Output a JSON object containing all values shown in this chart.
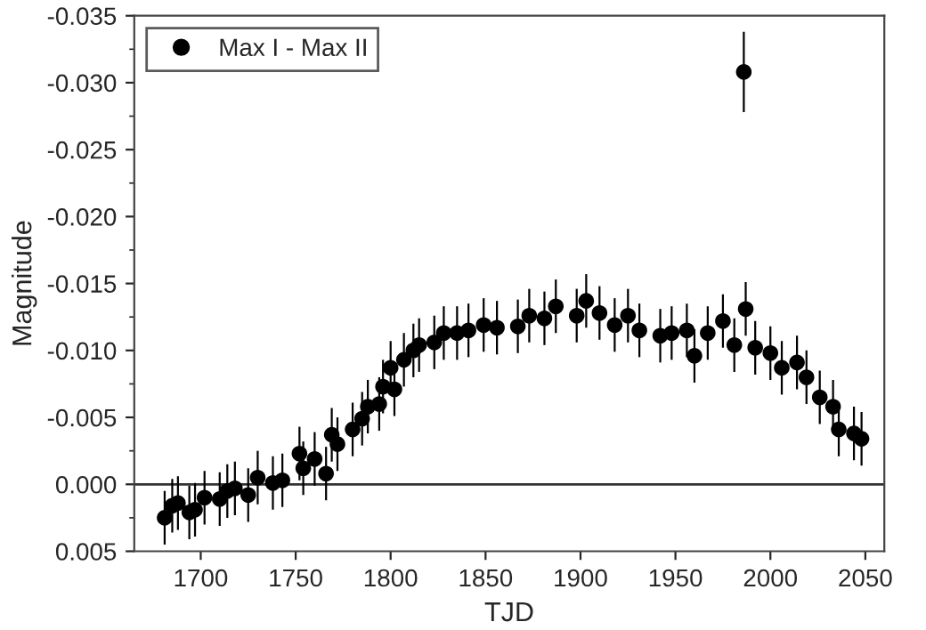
{
  "chart_data": {
    "type": "scatter",
    "xlabel": "TJD",
    "ylabel": "Magnitude",
    "x": [
      1681,
      1685,
      1688,
      1694,
      1697,
      1702,
      1710,
      1714,
      1718,
      1725,
      1730,
      1738,
      1743,
      1752,
      1754,
      1760,
      1766,
      1769,
      1772,
      1780,
      1785,
      1788,
      1794,
      1796,
      1800,
      1802,
      1807,
      1812,
      1815,
      1823,
      1828,
      1835,
      1841,
      1849,
      1856,
      1867,
      1873,
      1881,
      1887,
      1898,
      1903,
      1910,
      1918,
      1925,
      1931,
      1942,
      1948,
      1956,
      1960,
      1967,
      1975,
      1981,
      1986,
      1987,
      1992,
      2000,
      2006,
      2014,
      2019,
      2026,
      2033,
      2036,
      2044,
      2048
    ],
    "series": [
      {
        "name": "Max I - Max II",
        "color": "#000000",
        "values": [
          0.0025,
          0.0016,
          0.0014,
          0.0021,
          0.0019,
          0.001,
          0.0011,
          0.0005,
          0.0003,
          0.0008,
          -0.0005,
          -0.0001,
          -0.0003,
          -0.0023,
          -0.0012,
          -0.0019,
          -0.0008,
          -0.0037,
          -0.003,
          -0.0041,
          -0.0049,
          -0.0058,
          -0.006,
          -0.0073,
          -0.0087,
          -0.0071,
          -0.0093,
          -0.01,
          -0.0104,
          -0.0106,
          -0.0113,
          -0.0113,
          -0.0115,
          -0.0119,
          -0.0117,
          -0.0118,
          -0.0126,
          -0.0124,
          -0.0133,
          -0.0126,
          -0.0137,
          -0.0128,
          -0.0119,
          -0.0126,
          -0.0115,
          -0.0111,
          -0.0113,
          -0.0115,
          -0.0096,
          -0.0113,
          -0.0122,
          -0.0104,
          -0.0308,
          -0.0131,
          -0.0102,
          -0.0098,
          -0.0087,
          -0.0091,
          -0.008,
          -0.0065,
          -0.0058,
          -0.0041,
          -0.0038,
          -0.0034
        ],
        "errors": [
          0.002,
          0.002,
          0.002,
          0.002,
          0.002,
          0.002,
          0.002,
          0.002,
          0.002,
          0.002,
          0.002,
          0.002,
          0.002,
          0.002,
          0.002,
          0.002,
          0.002,
          0.002,
          0.002,
          0.002,
          0.002,
          0.002,
          0.002,
          0.002,
          0.002,
          0.002,
          0.002,
          0.002,
          0.002,
          0.002,
          0.002,
          0.002,
          0.002,
          0.002,
          0.002,
          0.002,
          0.002,
          0.002,
          0.002,
          0.002,
          0.002,
          0.002,
          0.002,
          0.002,
          0.002,
          0.002,
          0.002,
          0.002,
          0.002,
          0.002,
          0.002,
          0.002,
          0.003,
          0.002,
          0.002,
          0.002,
          0.002,
          0.002,
          0.002,
          0.002,
          0.002,
          0.002,
          0.002,
          0.002
        ]
      }
    ],
    "xlim": [
      1665,
      2060
    ],
    "xticks": [
      1700,
      1750,
      1800,
      1850,
      1900,
      1950,
      2000,
      2050
    ],
    "ylim": [
      0.005,
      -0.035
    ],
    "yticks": [
      {
        "value": 0.005,
        "label": "0.005"
      },
      {
        "value": 0.0,
        "label": "0.000"
      },
      {
        "value": -0.005,
        "label": "-0.005"
      },
      {
        "value": -0.01,
        "label": "-0.010"
      },
      {
        "value": -0.015,
        "label": "-0.015"
      },
      {
        "value": -0.02,
        "label": "-0.020"
      },
      {
        "value": -0.025,
        "label": "-0.025"
      },
      {
        "value": -0.03,
        "label": "-0.030"
      },
      {
        "value": -0.035,
        "label": "-0.035"
      }
    ],
    "ref_lines": [
      {
        "axis": "y",
        "value": 0.0,
        "color": "#333333"
      }
    ],
    "legend": "top left",
    "marker": "circle",
    "grid": false
  }
}
